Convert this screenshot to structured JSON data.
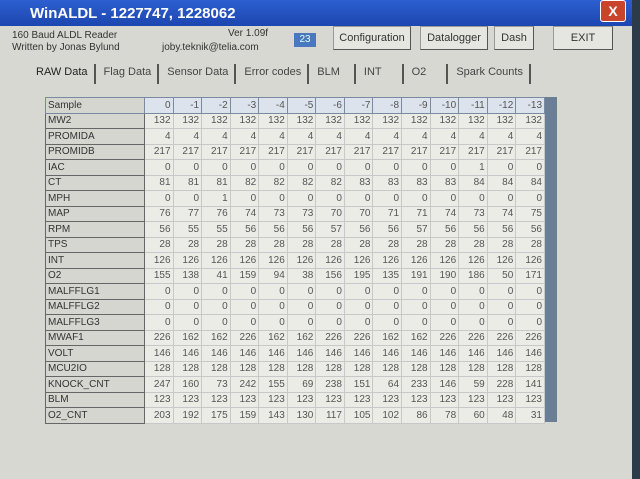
{
  "window": {
    "title": "WinALDL - 1227747, 1228062",
    "close_label": "X"
  },
  "info": {
    "line1": "160 Baud ALDL Reader",
    "line2": "Written by Jonas Bylund",
    "version": "Ver 1.09f",
    "email": "joby.teknik@telia.com",
    "counter": "23"
  },
  "buttons": {
    "configuration": "Configuration",
    "datalogger": "Datalogger",
    "dash": "Dash",
    "exit": "EXIT"
  },
  "tabs": [
    "RAW Data",
    "Flag Data",
    "Sensor Data",
    "Error codes",
    "BLM",
    "INT",
    "O2",
    "Spark Counts"
  ],
  "table": {
    "header_label": "Sample",
    "columns": [
      "0",
      "-1",
      "-2",
      "-3",
      "-4",
      "-5",
      "-6",
      "-7",
      "-8",
      "-9",
      "-10",
      "-11",
      "-12",
      "-13"
    ],
    "rows": [
      {
        "label": "MW2",
        "values": [
          132,
          132,
          132,
          132,
          132,
          132,
          132,
          132,
          132,
          132,
          132,
          132,
          132,
          132
        ]
      },
      {
        "label": "PROMIDA",
        "values": [
          4,
          4,
          4,
          4,
          4,
          4,
          4,
          4,
          4,
          4,
          4,
          4,
          4,
          4
        ]
      },
      {
        "label": "PROMIDB",
        "values": [
          217,
          217,
          217,
          217,
          217,
          217,
          217,
          217,
          217,
          217,
          217,
          217,
          217,
          217
        ]
      },
      {
        "label": "IAC",
        "values": [
          0,
          0,
          0,
          0,
          0,
          0,
          0,
          0,
          0,
          0,
          0,
          1,
          0,
          0
        ]
      },
      {
        "label": "CT",
        "values": [
          81,
          81,
          81,
          82,
          82,
          82,
          82,
          83,
          83,
          83,
          83,
          84,
          84,
          84
        ]
      },
      {
        "label": "MPH",
        "values": [
          0,
          0,
          1,
          0,
          0,
          0,
          0,
          0,
          0,
          0,
          0,
          0,
          0,
          0
        ]
      },
      {
        "label": "MAP",
        "values": [
          76,
          77,
          76,
          74,
          73,
          73,
          70,
          70,
          71,
          71,
          74,
          73,
          74,
          75
        ]
      },
      {
        "label": "RPM",
        "values": [
          56,
          55,
          55,
          56,
          56,
          56,
          57,
          56,
          56,
          57,
          56,
          56,
          56,
          56
        ]
      },
      {
        "label": "TPS",
        "values": [
          28,
          28,
          28,
          28,
          28,
          28,
          28,
          28,
          28,
          28,
          28,
          28,
          28,
          28
        ]
      },
      {
        "label": "INT",
        "values": [
          126,
          126,
          126,
          126,
          126,
          126,
          126,
          126,
          126,
          126,
          126,
          126,
          126,
          126
        ]
      },
      {
        "label": "O2",
        "values": [
          155,
          138,
          41,
          159,
          94,
          38,
          156,
          195,
          135,
          191,
          190,
          186,
          50,
          171
        ]
      },
      {
        "label": "MALFFLG1",
        "values": [
          0,
          0,
          0,
          0,
          0,
          0,
          0,
          0,
          0,
          0,
          0,
          0,
          0,
          0
        ]
      },
      {
        "label": "MALFFLG2",
        "values": [
          0,
          0,
          0,
          0,
          0,
          0,
          0,
          0,
          0,
          0,
          0,
          0,
          0,
          0
        ]
      },
      {
        "label": "MALFFLG3",
        "values": [
          0,
          0,
          0,
          0,
          0,
          0,
          0,
          0,
          0,
          0,
          0,
          0,
          0,
          0
        ]
      },
      {
        "label": "MWAF1",
        "values": [
          226,
          162,
          162,
          226,
          162,
          162,
          226,
          226,
          162,
          162,
          226,
          226,
          226,
          226
        ]
      },
      {
        "label": "VOLT",
        "values": [
          146,
          146,
          146,
          146,
          146,
          146,
          146,
          146,
          146,
          146,
          146,
          146,
          146,
          146
        ]
      },
      {
        "label": "MCU2IO",
        "values": [
          128,
          128,
          128,
          128,
          128,
          128,
          128,
          128,
          128,
          128,
          128,
          128,
          128,
          128
        ]
      },
      {
        "label": "KNOCK_CNT",
        "values": [
          247,
          160,
          73,
          242,
          155,
          69,
          238,
          151,
          64,
          233,
          146,
          59,
          228,
          141
        ]
      },
      {
        "label": "BLM",
        "values": [
          123,
          123,
          123,
          123,
          123,
          123,
          123,
          123,
          123,
          123,
          123,
          123,
          123,
          123
        ]
      },
      {
        "label": "O2_CNT",
        "values": [
          203,
          192,
          175,
          159,
          143,
          130,
          117,
          105,
          102,
          86,
          78,
          60,
          48,
          31
        ]
      }
    ]
  }
}
